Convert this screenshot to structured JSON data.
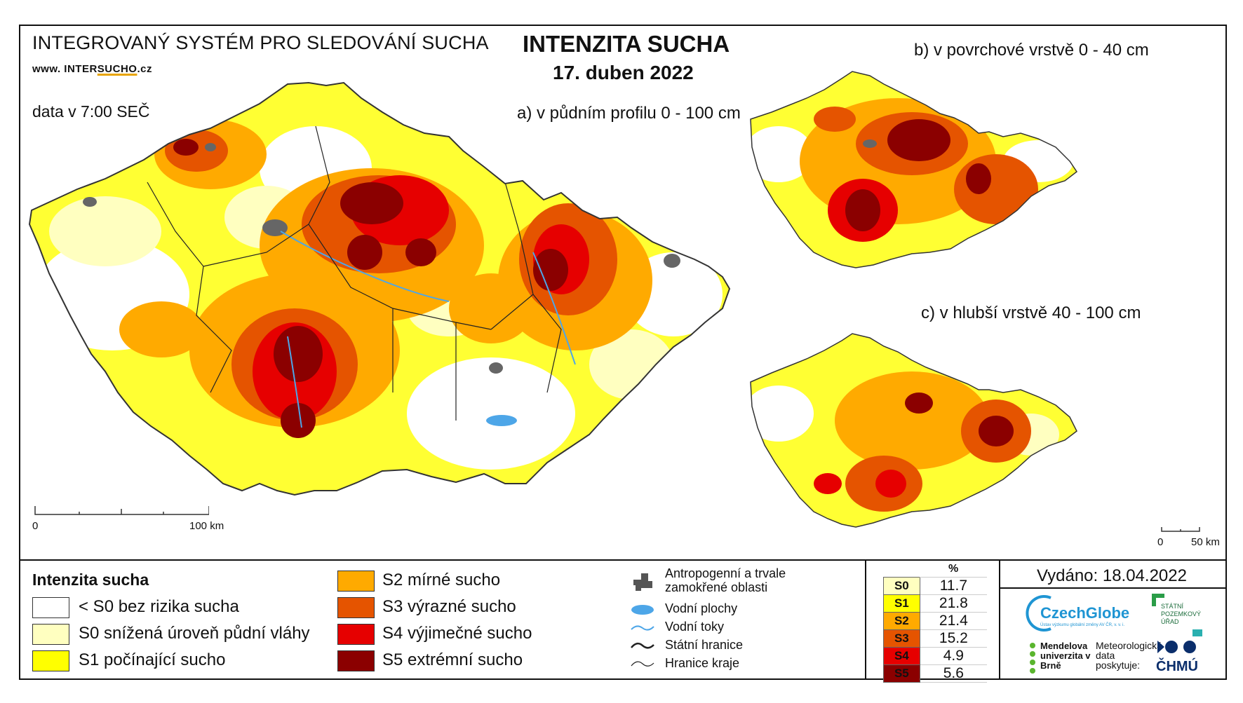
{
  "header": {
    "system_name": "INTEGROVANÝ SYSTÉM PRO SLEDOVÁNÍ SUCHA",
    "website_prefix": "www. INTER",
    "website_highlight": "SUCHO",
    "website_suffix": ".cz",
    "data_time": "data v 7:00 SEČ"
  },
  "title": {
    "main": "INTENZITA SUCHA",
    "date": "17. duben 2022"
  },
  "panels": {
    "a": "a) v půdním profilu 0 - 100 cm",
    "b": "b) v povrchové vrstvě 0 - 40 cm",
    "c": "c) v hlubší vrstvě 40 - 100 cm"
  },
  "scale_main": {
    "start": "0",
    "end": "100 km"
  },
  "scale_small": {
    "start": "0",
    "end": "50 km"
  },
  "legend": {
    "title": "Intenzita sucha",
    "classes": [
      {
        "label": "< S0 bez rizika sucha",
        "color": "#ffffff"
      },
      {
        "label": "S0 snížená úroveň půdní vláhy",
        "color": "#ffffc0"
      },
      {
        "label": "S1 počínající sucho",
        "color": "#ffff00"
      },
      {
        "label": "S2 mírné sucho",
        "color": "#ffaa00"
      },
      {
        "label": "S3 výrazné sucho",
        "color": "#e55400"
      },
      {
        "label": "S4 výjimečné sucho",
        "color": "#e60000"
      },
      {
        "label": "S5 extrémní sucho",
        "color": "#8b0000"
      }
    ],
    "symbols": [
      {
        "label": "Antropogenní a trvale zamokřené oblasti",
        "icon": "grey-area-icon"
      },
      {
        "label": "Vodní plochy",
        "icon": "water-body-icon"
      },
      {
        "label": "Vodní toky",
        "icon": "river-icon"
      },
      {
        "label": "Státní hranice",
        "icon": "state-border-icon"
      },
      {
        "label": "Hranice kraje",
        "icon": "region-border-icon"
      }
    ]
  },
  "stats": {
    "header": "%",
    "rows": [
      {
        "code": "S0",
        "value": "11.7",
        "color": "#ffffc0"
      },
      {
        "code": "S1",
        "value": "21.8",
        "color": "#ffff00"
      },
      {
        "code": "S2",
        "value": "21.4",
        "color": "#ffaa00"
      },
      {
        "code": "S3",
        "value": "15.2",
        "color": "#e55400"
      },
      {
        "code": "S4",
        "value": "4.9",
        "color": "#e60000"
      },
      {
        "code": "S5",
        "value": "5.6",
        "color": "#8b0000"
      }
    ]
  },
  "issued": "Vydáno: 18.04.2022",
  "logos": {
    "czechglobe": "CzechGlobe",
    "czechglobe_sub": "Ústav výzkumu globální změny AV ČR, v. v. i.",
    "spu": "STÁTNÍ POZEMKOVÝ ÚŘAD",
    "mendel": "Mendelova univerzita v Brně",
    "meteo": "Meteorologická data poskytuje:",
    "chmu": "ČHMÚ"
  }
}
